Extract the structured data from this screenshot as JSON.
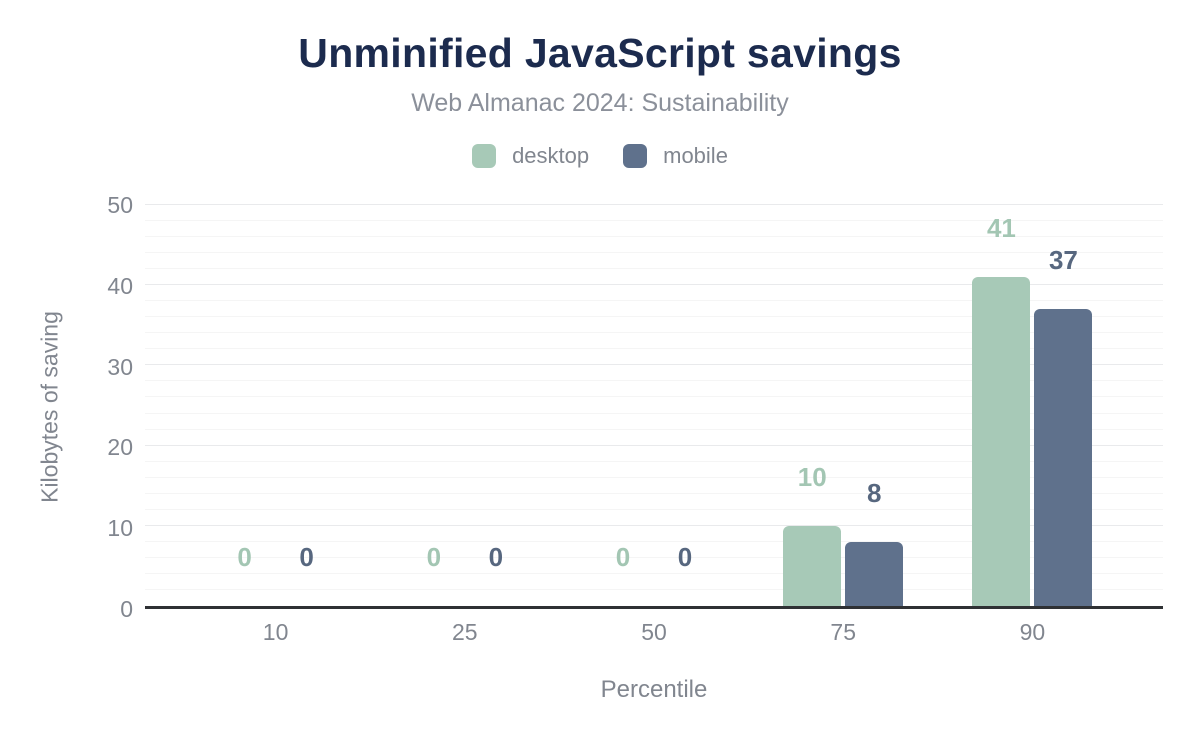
{
  "chart_data": {
    "type": "bar",
    "title": "Unminified JavaScript savings",
    "subtitle": "Web Almanac 2024: Sustainability",
    "xlabel": "Percentile",
    "ylabel": "Kilobytes of saving",
    "categories": [
      "10",
      "25",
      "50",
      "75",
      "90"
    ],
    "series": [
      {
        "name": "desktop",
        "color": "#a7c9b7",
        "label_color": "#a3c6b3",
        "values": [
          0,
          0,
          0,
          10,
          41
        ]
      },
      {
        "name": "mobile",
        "color": "#5f718c",
        "label_color": "#57677f",
        "values": [
          0,
          0,
          0,
          8,
          37
        ]
      }
    ],
    "ylim": [
      0,
      50
    ],
    "ytick_step": 10,
    "minor_grid_step": 2,
    "grid": true,
    "legend_position": "top",
    "data_labels_shown": true
  },
  "colors": {
    "background": "#ffffff",
    "title": "#1c2b4e",
    "subtitle": "#8b909a",
    "axis_text": "#81868f",
    "axis_line": "#2f3134",
    "grid_minor": "#f5f5f5",
    "grid_major": "#e9eaec"
  }
}
